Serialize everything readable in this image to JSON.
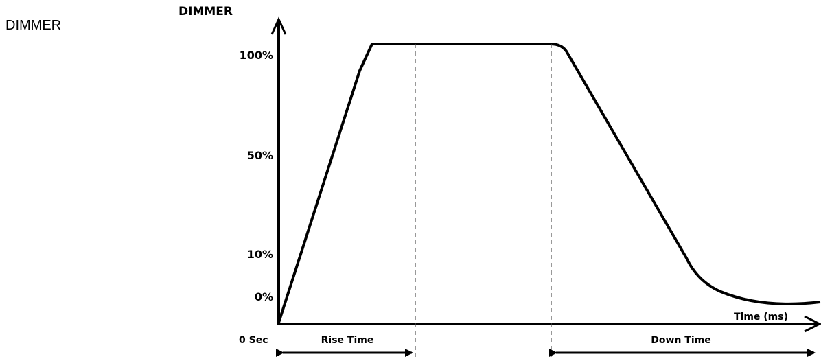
{
  "side_label": "DIMMER",
  "chart_data": {
    "type": "line",
    "ylabel": "DIMMER",
    "xlabel": "Time (ms)",
    "y_ticks": [
      "100%",
      "50%",
      "10%",
      "0%"
    ],
    "origin_label": "0 Sec",
    "phases": [
      {
        "name": "Rise Time"
      },
      {
        "name": "Down Time"
      }
    ],
    "colors": {
      "line": "#000000",
      "guides": "#555555"
    }
  }
}
